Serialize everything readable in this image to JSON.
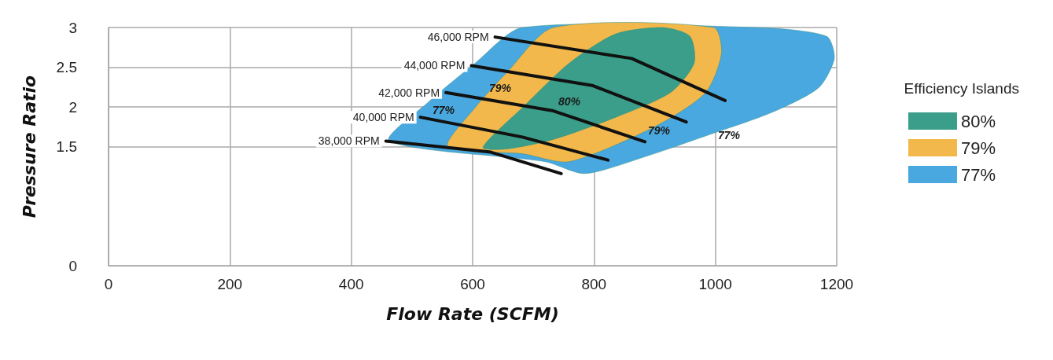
{
  "chart_data": {
    "type": "line",
    "xlabel": "Flow Rate (SCFM)",
    "ylabel": "Pressure Ratio",
    "legend_title": "Efficiency Islands",
    "xlim": [
      0,
      1200
    ],
    "xticks": [
      0,
      200,
      400,
      600,
      800,
      1000,
      1200
    ],
    "ylim": [
      0,
      3
    ],
    "yticks": [
      0,
      1.5,
      2,
      2.5,
      3
    ],
    "grid": true,
    "legend": "right",
    "marker": "none",
    "line_style": "solid",
    "series": [
      {
        "type": "area",
        "name": "77%",
        "color": "#4aa8e0",
        "x": [
          463,
          527,
          604,
          682,
          1068,
          1183,
          1196,
          1170,
          1093,
          990,
          887,
          785,
          720
        ],
        "values": [
          1.57,
          2.06,
          2.55,
          3,
          3,
          2.89,
          2.61,
          2.24,
          1.93,
          1.65,
          1.38,
          1.16,
          1.31
        ]
      },
      {
        "type": "area",
        "name": "79%",
        "color": "#f2b84b",
        "x": [
          559,
          604,
          656,
          733,
          997,
          1010,
          984,
          900,
          759,
          682
        ],
        "values": [
          1.5,
          1.99,
          2.43,
          3,
          3,
          2.67,
          2.18,
          1.75,
          1.31,
          1.41
        ]
      },
      {
        "type": "area",
        "name": "80%",
        "color": "#3a9e8a",
        "x": [
          617,
          682,
          759,
          836,
          913,
          958,
          965,
          926,
          836,
          733,
          656
        ],
        "values": [
          1.49,
          1.99,
          2.55,
          2.92,
          3,
          2.89,
          2.55,
          2.18,
          1.87,
          1.59,
          1.47
        ]
      },
      {
        "name": "46,000 RPM",
        "color": "#111111",
        "x": [
          637,
          862,
          1016
        ],
        "values": [
          2.88,
          2.61,
          2.08
        ]
      },
      {
        "name": "44,000 RPM",
        "color": "#111111",
        "x": [
          598,
          797,
          952
        ],
        "values": [
          2.52,
          2.27,
          1.81
        ]
      },
      {
        "name": "42,000 RPM",
        "color": "#111111",
        "x": [
          556,
          733,
          884
        ],
        "values": [
          2.18,
          1.95,
          1.56
        ]
      },
      {
        "name": "40,000 RPM",
        "color": "#111111",
        "x": [
          514,
          682,
          823
        ],
        "values": [
          1.87,
          1.62,
          1.33
        ]
      },
      {
        "name": "38,000 RPM",
        "color": "#111111",
        "x": [
          457,
          630,
          746
        ],
        "values": [
          1.57,
          1.43,
          1.16
        ]
      }
    ],
    "annotations": [
      "77%",
      "79%",
      "80%",
      "79%",
      "77%"
    ]
  }
}
